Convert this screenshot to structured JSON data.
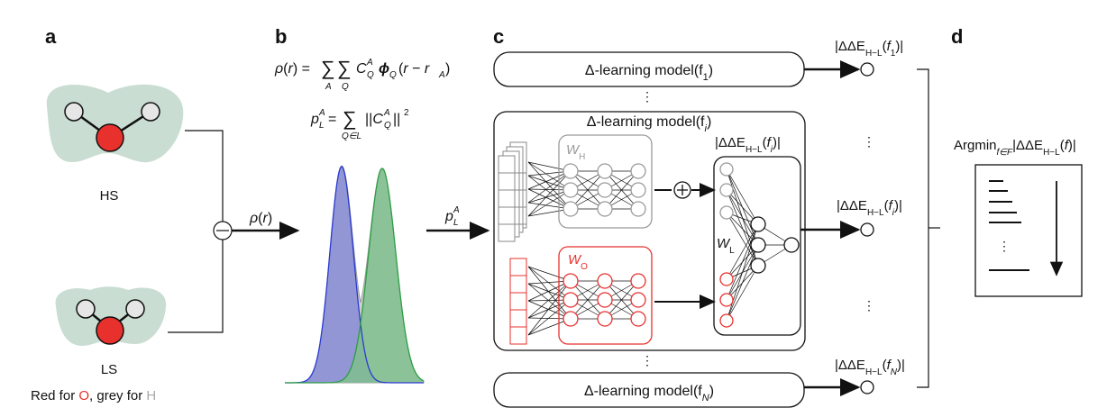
{
  "panel_labels": {
    "a": "a",
    "b": "b",
    "c": "c",
    "d": "d"
  },
  "panel_a": {
    "hs_label": "HS",
    "ls_label": "LS",
    "legend_red_prefix": "Red for ",
    "legend_o": "O",
    "legend_mid": ", grey for ",
    "legend_h": "H",
    "colors": {
      "oxygen": "#e8302d",
      "hydrogen": "#e6e6e6",
      "blob": "#c9ddd2"
    }
  },
  "panel_b": {
    "rho_arrow_label": "ρ(r)",
    "eq1_lhs": "ρ(r) = ",
    "eq1_rhs": "(r − r",
    "eq2_rhs": "||",
    "pL_arrow_label": "p",
    "colors": {
      "blue": "#8c8fd4",
      "green": "#7fbf8e",
      "blue_line": "#2a3bd0",
      "green_line": "#2e9e45"
    }
  },
  "panel_c": {
    "model_top": "Δ-learning model(f",
    "model_top_sub": "1",
    "model_mid": "Δ-learning model(f",
    "model_mid_sub": "i",
    "model_bot": "Δ-learning model(f",
    "model_bot_sub": "N",
    "w_h": "W",
    "w_h_sub": "H",
    "w_o": "W",
    "w_o_sub": "O",
    "w_l": "W",
    "w_l_sub": "L",
    "inner_output": "|ΔΔE",
    "out_prefix": "|ΔΔE",
    "out_sub": "H−L",
    "out1_arg": "f",
    "out1_argsub": "1",
    "outi_arg": "f",
    "outi_argsub": "i",
    "outN_arg": "f",
    "outN_argsub": "N",
    "vdots": "⋮",
    "colors": {
      "grey_net": "#9a9a9a",
      "red_net": "#e8302d"
    }
  },
  "panel_d": {
    "argmin": "Argmin",
    "argmin_sub": "f∈F",
    "argmin_rest": "|ΔΔE",
    "argmin_sub2": "H−L",
    "argmin_tail": "(f)|",
    "vdots": "⋮"
  }
}
